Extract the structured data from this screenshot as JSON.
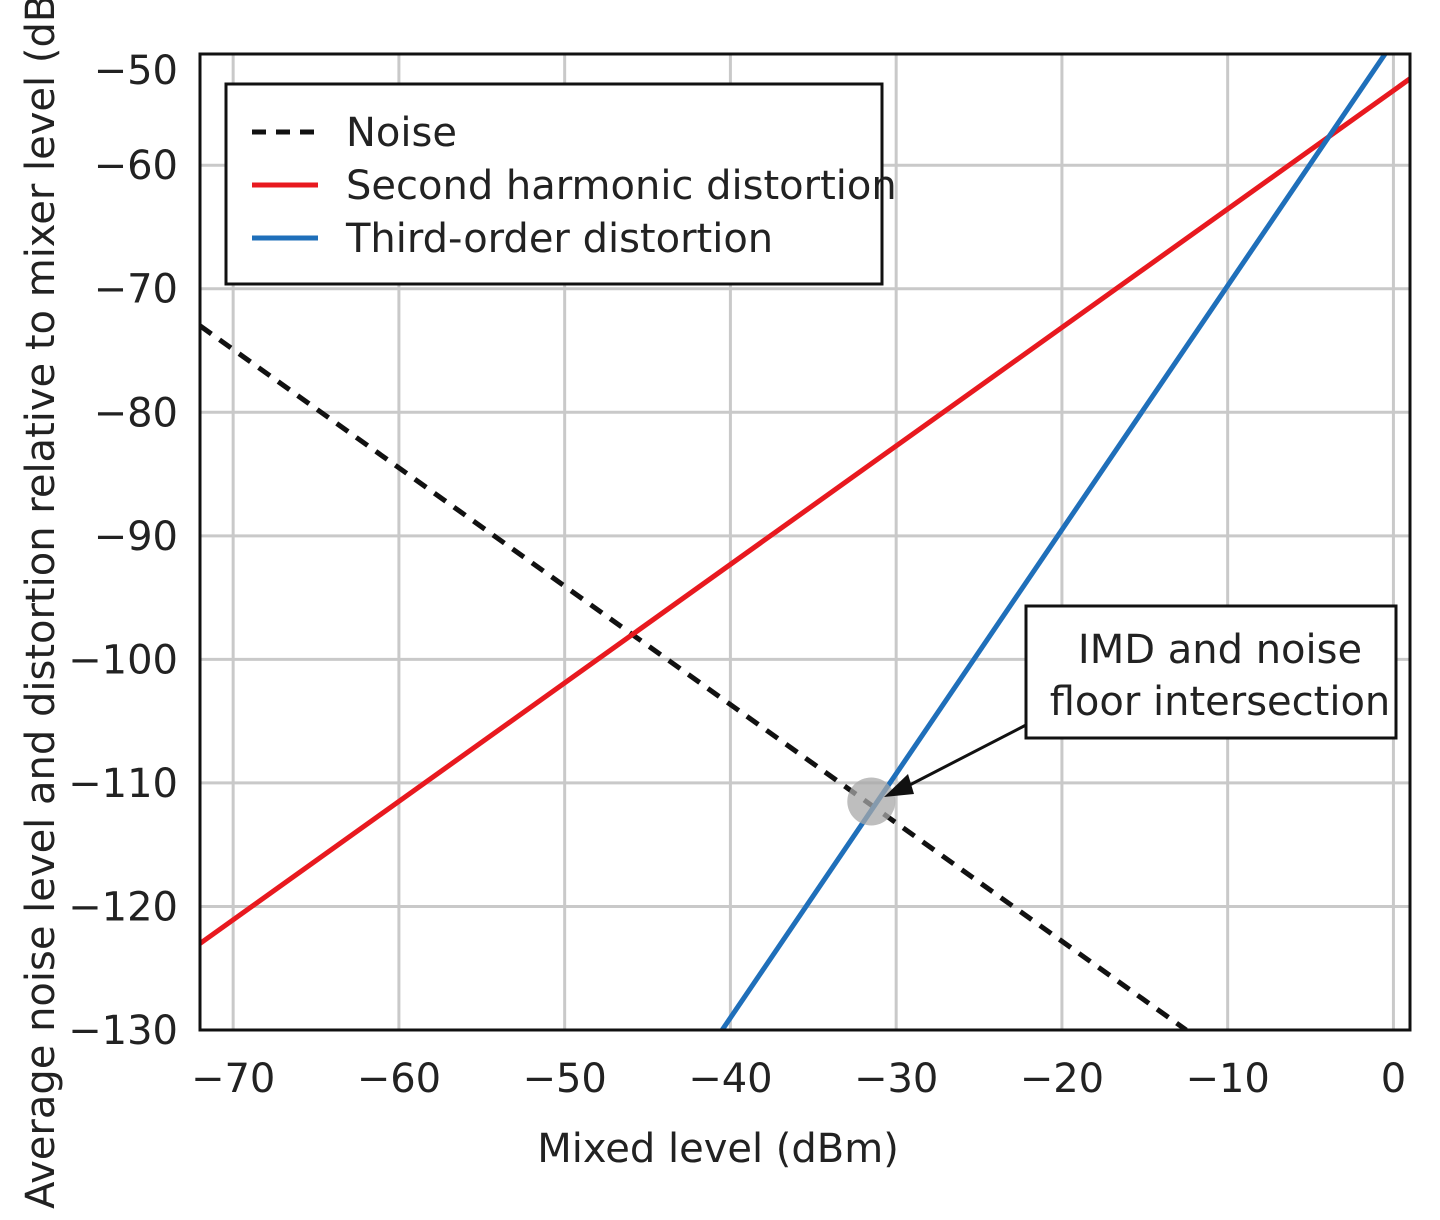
{
  "chart_data": {
    "type": "line",
    "title": "",
    "xlabel": "Mixed level (dBm)",
    "ylabel": "Average noise level and distortion relative to mixer level (dB)",
    "xlim": [
      -72,
      1
    ],
    "ylim": [
      -130,
      -51
    ],
    "xticks": [
      -70,
      -60,
      -50,
      -40,
      -30,
      -20,
      -10,
      0
    ],
    "yticks": [
      -50,
      -60,
      -70,
      -80,
      -90,
      -100,
      -110,
      -120,
      -130
    ],
    "xtick_labels": [
      "−70",
      "−60",
      "−50",
      "−40",
      "−30",
      "−20",
      "−10",
      "0"
    ],
    "ytick_labels": [
      "−50",
      "−60",
      "−70",
      "−80",
      "−90",
      "−100",
      "−110",
      "−120",
      "−130"
    ],
    "grid": true,
    "legend_position": "top-left",
    "series": [
      {
        "name": "Noise",
        "color": "#111111",
        "style": "dashed",
        "x": [
          -72,
          -12.5
        ],
        "y": [
          -73,
          -130
        ]
      },
      {
        "name": "Second harmonic distortion",
        "color": "#e8191f",
        "style": "solid",
        "x": [
          -72,
          1
        ],
        "y": [
          -123,
          -53
        ]
      },
      {
        "name": "Third-order distortion",
        "color": "#1f6fba",
        "style": "solid",
        "x": [
          -40.5,
          0
        ],
        "y": [
          -130,
          -50
        ]
      }
    ],
    "annotations": [
      {
        "lines": [
          "IMD and noise",
          "floor intersection"
        ],
        "point": {
          "x": -31.5,
          "y": -111.5
        },
        "position": "right"
      }
    ]
  }
}
